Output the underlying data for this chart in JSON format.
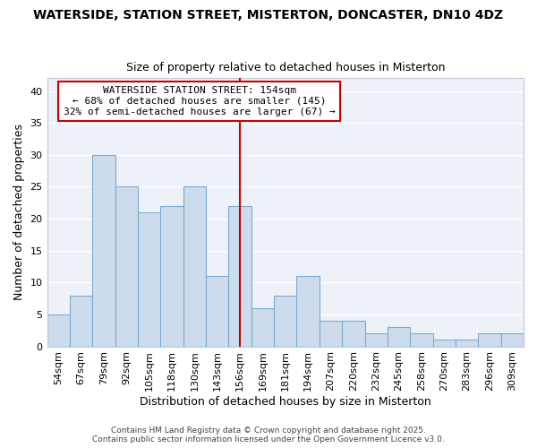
{
  "title_line1": "WATERSIDE, STATION STREET, MISTERTON, DONCASTER, DN10 4DZ",
  "title_line2": "Size of property relative to detached houses in Misterton",
  "xlabel": "Distribution of detached houses by size in Misterton",
  "ylabel": "Number of detached properties",
  "categories": [
    "54sqm",
    "67sqm",
    "79sqm",
    "92sqm",
    "105sqm",
    "118sqm",
    "130sqm",
    "143sqm",
    "156sqm",
    "169sqm",
    "181sqm",
    "194sqm",
    "207sqm",
    "220sqm",
    "232sqm",
    "245sqm",
    "258sqm",
    "270sqm",
    "283sqm",
    "296sqm",
    "309sqm"
  ],
  "values": [
    5,
    8,
    30,
    25,
    21,
    22,
    25,
    11,
    22,
    6,
    8,
    11,
    4,
    4,
    2,
    3,
    2,
    1,
    1,
    2,
    2
  ],
  "bar_color": "#cddcec",
  "bar_edge_color": "#7aaad0",
  "vline_index": 8,
  "vline_color": "#cc0000",
  "annotation_title": "WATERSIDE STATION STREET: 154sqm",
  "annotation_line2": "← 68% of detached houses are smaller (145)",
  "annotation_line3": "32% of semi-detached houses are larger (67) →",
  "annotation_box_color": "#ffffff",
  "annotation_border_color": "#cc0000",
  "ylim": [
    0,
    42
  ],
  "yticks": [
    0,
    5,
    10,
    15,
    20,
    25,
    30,
    35,
    40
  ],
  "footer_text": "Contains HM Land Registry data © Crown copyright and database right 2025.\nContains public sector information licensed under the Open Government Licence v3.0.",
  "plot_bg_color": "#eef2f8",
  "grid_color": "#ffffff",
  "title_fontsize": 10,
  "subtitle_fontsize": 9,
  "axis_label_fontsize": 9,
  "tick_fontsize": 8,
  "annotation_fontsize": 8,
  "footer_fontsize": 6.5
}
